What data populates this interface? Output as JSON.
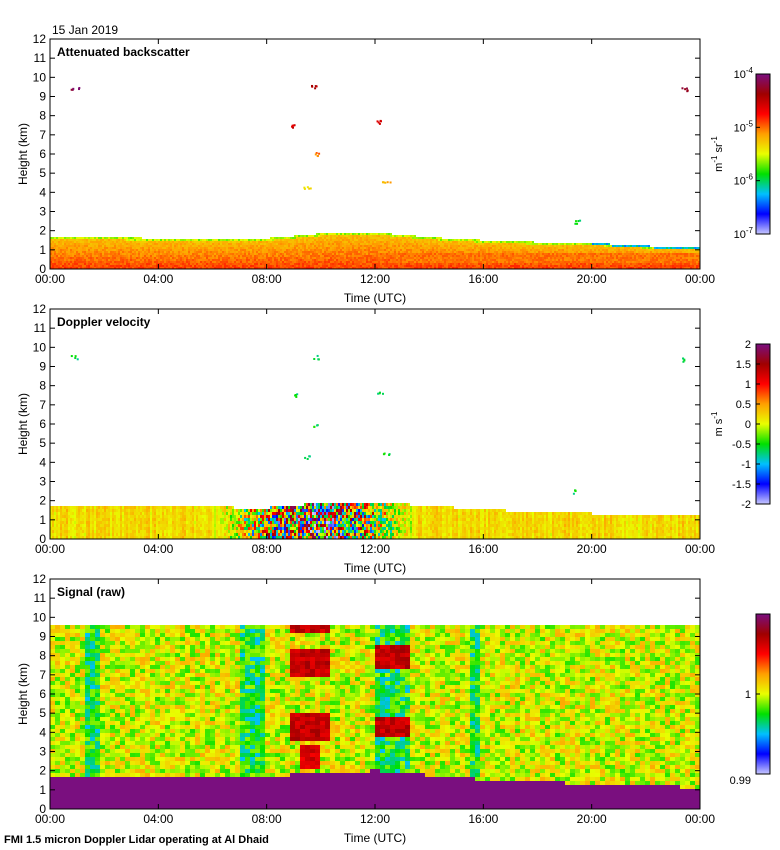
{
  "date_label": "15 Jan 2019",
  "footer": "FMI 1.5 micron Doppler Lidar operating at Al Dhaid",
  "colors": {
    "purple": "#7a0f7f",
    "rainbow": [
      "#c8c8ff",
      "#0000ff",
      "#00c0ff",
      "#00e000",
      "#e8ff00",
      "#ffa000",
      "#ff0000",
      "#a00000",
      "#7a0f7f"
    ]
  },
  "chart_data": [
    {
      "type": "heatmap",
      "title": "Attenuated backscatter",
      "xlabel": "Time (UTC)",
      "ylabel": "Height (km)",
      "x_ticks": [
        "00:00",
        "04:00",
        "08:00",
        "12:00",
        "16:00",
        "20:00",
        "00:00"
      ],
      "xlim_hours": [
        0,
        24
      ],
      "ylim": [
        0,
        12
      ],
      "y_ticks": [
        "0",
        "1",
        "2",
        "3",
        "4",
        "5",
        "6",
        "7",
        "8",
        "9",
        "10",
        "11",
        "12"
      ],
      "colorbar": {
        "scale": "log",
        "range": [
          1e-07,
          0.0001
        ],
        "ticks": [
          {
            "base": "10",
            "exp": "-4"
          },
          {
            "base": "10",
            "exp": "-5"
          },
          {
            "base": "10",
            "exp": "-6"
          },
          {
            "base": "10",
            "exp": "-7"
          }
        ],
        "label_parts": [
          "m",
          "-1",
          " sr",
          "-1"
        ]
      },
      "boundary_layer_top_km": [
        {
          "t": 0,
          "h": 1.65
        },
        {
          "t": 2,
          "h": 1.6
        },
        {
          "t": 4,
          "h": 1.55
        },
        {
          "t": 6,
          "h": 1.5
        },
        {
          "t": 8,
          "h": 1.55
        },
        {
          "t": 10,
          "h": 1.8
        },
        {
          "t": 12,
          "h": 1.85
        },
        {
          "t": 14,
          "h": 1.6
        },
        {
          "t": 16,
          "h": 1.45
        },
        {
          "t": 18,
          "h": 1.35
        },
        {
          "t": 20,
          "h": 1.3
        },
        {
          "t": 22,
          "h": 1.15
        },
        {
          "t": 24,
          "h": 1.1
        }
      ],
      "cloud_features": [
        {
          "t": 0.9,
          "h": 9.5,
          "level": 0.95
        },
        {
          "t": 9.0,
          "h": 7.5,
          "level": 0.8
        },
        {
          "t": 9.5,
          "h": 4.3,
          "level": 0.55
        },
        {
          "t": 9.75,
          "h": 9.5,
          "level": 0.85
        },
        {
          "t": 9.85,
          "h": 6.0,
          "level": 0.65
        },
        {
          "t": 12.2,
          "h": 7.7,
          "level": 0.78
        },
        {
          "t": 12.4,
          "h": 4.5,
          "level": 0.6
        },
        {
          "t": 19.4,
          "h": 2.5,
          "level": 0.35
        },
        {
          "t": 23.4,
          "h": 9.4,
          "level": 0.9
        }
      ]
    },
    {
      "type": "heatmap",
      "title": "Doppler velocity",
      "xlabel": "Time (UTC)",
      "ylabel": "Height (km)",
      "x_ticks": [
        "00:00",
        "04:00",
        "08:00",
        "12:00",
        "16:00",
        "20:00",
        "00:00"
      ],
      "xlim_hours": [
        0,
        24
      ],
      "ylim": [
        0,
        12
      ],
      "y_ticks": [
        "0",
        "1",
        "2",
        "3",
        "4",
        "5",
        "6",
        "7",
        "8",
        "9",
        "10",
        "11",
        "12"
      ],
      "colorbar": {
        "scale": "linear",
        "range": [
          -2,
          2
        ],
        "ticks": [
          "2",
          "1.5",
          "1",
          "0.5",
          "0",
          "-0.5",
          "-1",
          "-1.5",
          "-2"
        ],
        "label_parts": [
          "m s",
          "-1"
        ]
      },
      "turbulent_period_hours": [
        6,
        13.5
      ],
      "boundary_layer_top_km": [
        {
          "t": 0,
          "h": 1.7
        },
        {
          "t": 4,
          "h": 1.6
        },
        {
          "t": 8,
          "h": 1.55
        },
        {
          "t": 10,
          "h": 1.8
        },
        {
          "t": 12,
          "h": 1.85
        },
        {
          "t": 16,
          "h": 1.45
        },
        {
          "t": 20,
          "h": 1.25
        },
        {
          "t": 24,
          "h": 1.1
        }
      ]
    },
    {
      "type": "heatmap",
      "title": "Signal (raw)",
      "xlabel": "Time (UTC)",
      "ylabel": "Height (km)",
      "x_ticks": [
        "00:00",
        "04:00",
        "08:00",
        "12:00",
        "16:00",
        "20:00",
        "00:00"
      ],
      "xlim_hours": [
        0,
        24
      ],
      "ylim": [
        0,
        12
      ],
      "y_ticks": [
        "0",
        "1",
        "2",
        "3",
        "4",
        "5",
        "6",
        "7",
        "8",
        "9",
        "10",
        "11",
        "12"
      ],
      "colorbar": {
        "scale": "linear",
        "range": [
          0.99,
          1.01
        ],
        "ticks": [
          "1",
          "0.99"
        ]
      },
      "data_top_km": 9.6,
      "saturated_surface_layer_km": [
        {
          "t": 0,
          "h": 1.65
        },
        {
          "t": 4,
          "h": 1.55
        },
        {
          "t": 7,
          "h": 1.55
        },
        {
          "t": 12,
          "h": 1.9
        },
        {
          "t": 16,
          "h": 1.4
        },
        {
          "t": 20,
          "h": 1.2
        },
        {
          "t": 24,
          "h": 1.0
        }
      ]
    }
  ]
}
